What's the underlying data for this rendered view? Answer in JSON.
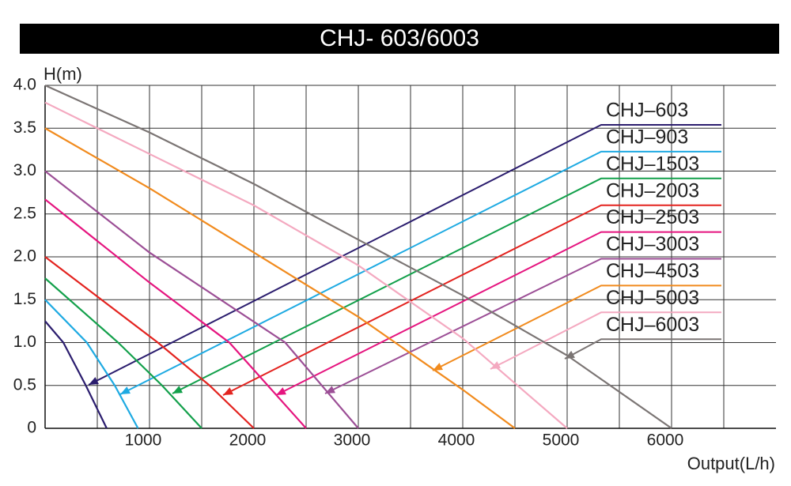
{
  "chart_data": {
    "type": "line",
    "title": "CHJ- 603/6003",
    "ylabel": "H(m)",
    "xlabel": "Output(L/h)",
    "xlim": [
      0,
      7000
    ],
    "ylim": [
      0,
      4
    ],
    "xticks": [
      {
        "value": 500,
        "label": null
      },
      1000,
      {
        "value": 1500,
        "label": null
      },
      2000,
      {
        "value": 2500,
        "label": null
      },
      3000,
      {
        "value": 3500,
        "label": null
      },
      4000,
      {
        "value": 4500,
        "label": null
      },
      5000,
      {
        "value": 5500,
        "label": null
      },
      6000,
      {
        "value": 6500,
        "label": null
      }
    ],
    "yticks": [
      0,
      0.5,
      {
        "value": 1,
        "label": "1.0"
      },
      1.5,
      {
        "value": 2,
        "label": "2.0"
      },
      2.5,
      {
        "value": 3,
        "label": "3.0"
      },
      3.5,
      {
        "value": 4,
        "label": "4.0"
      }
    ],
    "grid": true,
    "series": [
      {
        "name": "CHJ–603",
        "color": "#2b1d6e",
        "x": [
          0,
          175,
          390,
          590
        ],
        "values": [
          1.25,
          1.0,
          0.5,
          0
        ]
      },
      {
        "name": "CHJ–903",
        "color": "#1eaae2",
        "x": [
          0,
          400,
          667,
          890
        ],
        "values": [
          1.5,
          1.0,
          0.5,
          0
        ]
      },
      {
        "name": "CHJ–1503",
        "color": "#13a04b",
        "x": [
          0,
          700,
          1120,
          1500
        ],
        "values": [
          1.75,
          1.0,
          0.5,
          0
        ]
      },
      {
        "name": "CHJ–2003",
        "color": "#e3231f",
        "x": [
          0,
          1080,
          1575,
          2000
        ],
        "values": [
          2.0,
          1.0,
          0.5,
          0
        ]
      },
      {
        "name": "CHJ–2503",
        "color": "#e5157f",
        "x": [
          0,
          1000,
          1765,
          2500
        ],
        "values": [
          2.67,
          1.7,
          1.0,
          0
        ]
      },
      {
        "name": "CHJ–3003",
        "color": "#9c4f96",
        "x": [
          0,
          1000,
          2300,
          3000
        ],
        "values": [
          3.0,
          2.05,
          1.0,
          0
        ]
      },
      {
        "name": "CHJ–4503",
        "color": "#f18b1e",
        "x": [
          0,
          1000,
          2000,
          3000,
          4000,
          4500
        ],
        "values": [
          3.5,
          2.8,
          2.05,
          1.3,
          0.45,
          0
        ]
      },
      {
        "name": "CHJ–5003",
        "color": "#f4a9c0",
        "x": [
          0,
          1000,
          2000,
          3000,
          4000,
          5000
        ],
        "values": [
          3.8,
          3.2,
          2.6,
          1.9,
          1.05,
          0
        ]
      },
      {
        "name": "CHJ–6003",
        "color": "#7b7574",
        "x": [
          0,
          1000,
          2000,
          3000,
          4000,
          5000,
          6000
        ],
        "values": [
          4.0,
          3.45,
          2.85,
          2.2,
          1.55,
          0.85,
          0
        ]
      }
    ]
  }
}
